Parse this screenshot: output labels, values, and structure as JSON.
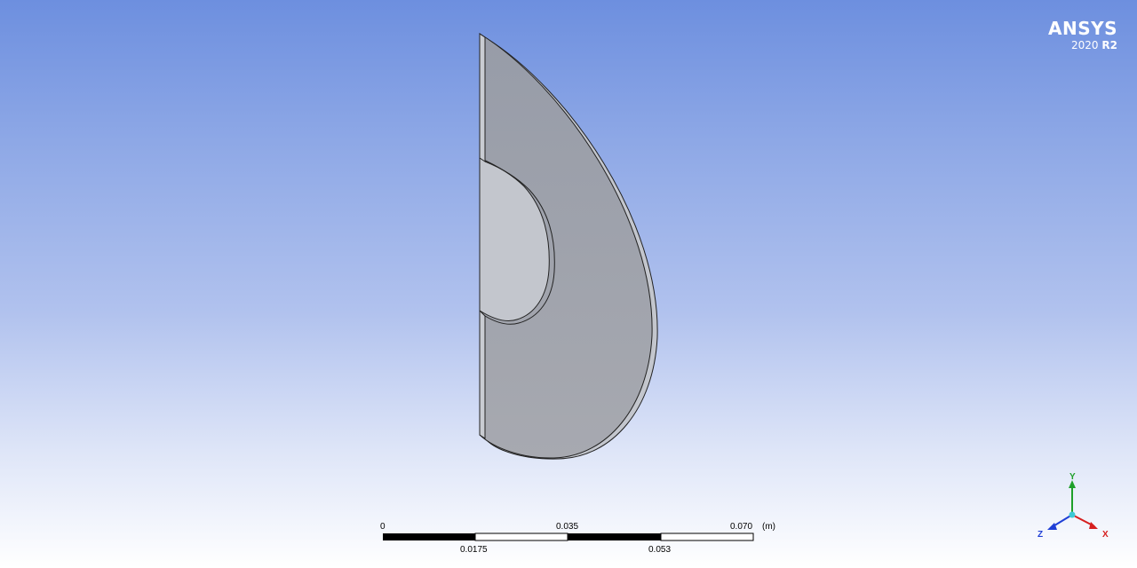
{
  "branding": {
    "name": "ANSYS",
    "version_year": "2020",
    "version_release": "R2"
  },
  "scale_bar": {
    "labels_top": [
      "0",
      "0.035",
      "0.070"
    ],
    "unit": "(m)",
    "labels_bottom": [
      "0.0175",
      "0.053"
    ]
  },
  "triad": {
    "x_label": "X",
    "y_label": "Y",
    "z_label": "Z",
    "x_color": "#d61f1f",
    "y_color": "#1fa02a",
    "z_color": "#1f3fd6"
  },
  "colors": {
    "background_top": "#6d8fdf",
    "background_bottom": "#ffffff",
    "body_face": "#9ea3ad",
    "body_edge": "#222222"
  }
}
